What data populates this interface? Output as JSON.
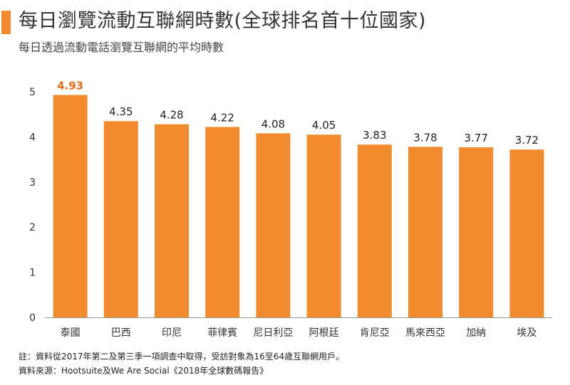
{
  "header": {
    "title": "每日瀏覽流動互聯網時數(全球排名首十位國家)",
    "subtitle": "每日透過流動電話瀏覽互聯網的平均時數"
  },
  "colors": {
    "bar": "#f28a2e",
    "highlight_label": "#e36c1a",
    "axis": "#999999"
  },
  "chart_data": {
    "type": "bar",
    "categories": [
      "泰國",
      "巴西",
      "印尼",
      "菲律賓",
      "尼日利亞",
      "阿根廷",
      "肯尼亞",
      "馬來西亞",
      "加納",
      "埃及"
    ],
    "values": [
      4.93,
      4.35,
      4.28,
      4.22,
      4.08,
      4.05,
      3.83,
      3.78,
      3.77,
      3.72
    ],
    "value_labels": [
      "4.93",
      "4.35",
      "4.28",
      "4.22",
      "4.08",
      "4.05",
      "3.83",
      "3.78",
      "3.77",
      "3.72"
    ],
    "highlight_index": 0,
    "yticks": [
      "0",
      "1",
      "2",
      "3",
      "4",
      "5"
    ],
    "ylim": [
      0,
      5
    ],
    "grid": false,
    "legend": "none"
  },
  "footer": {
    "note": "註：資料從2017年第二及第三季一項調查中取得，受訪對象為16至64歲互聯網用戶。",
    "source": "資料來源：Hootsuite及We Are Social《2018年全球數碼報告》"
  }
}
